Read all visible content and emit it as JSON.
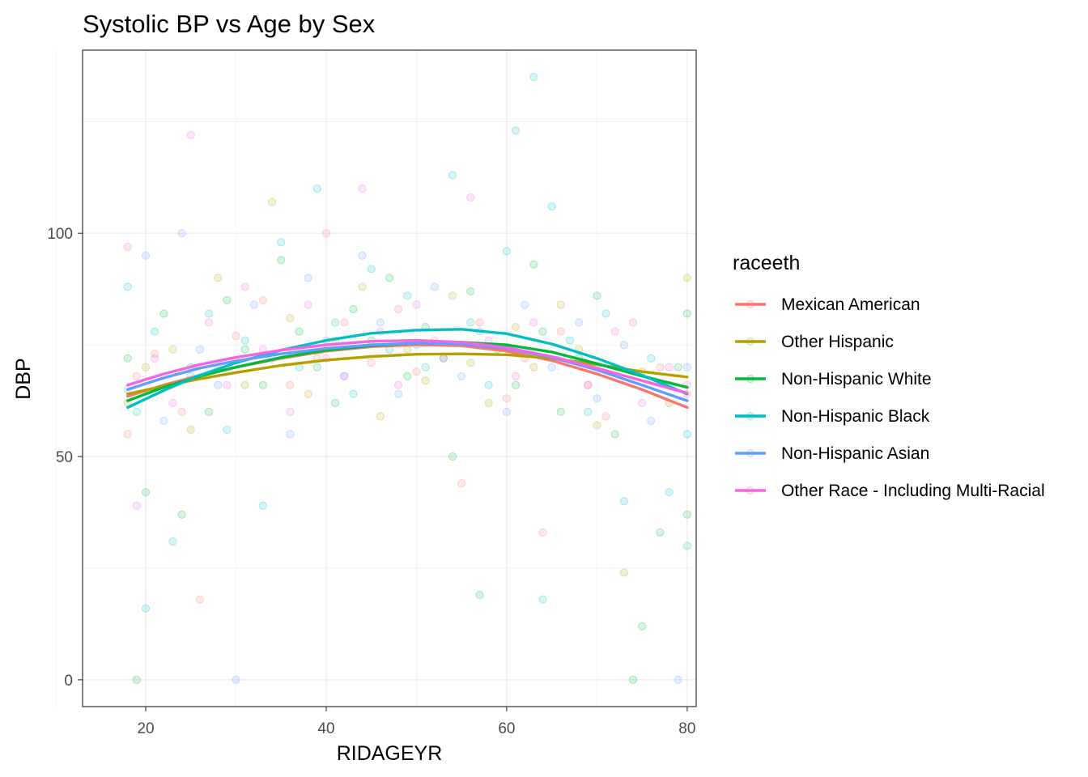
{
  "chart_data": {
    "type": "scatter",
    "title": "Systolic BP vs Age by Sex",
    "xlabel": "RIDAGEYR",
    "ylabel": "DBP",
    "xlim": [
      13,
      81
    ],
    "ylim": [
      -6,
      141
    ],
    "x_ticks": [
      "20",
      "40",
      "60",
      "80"
    ],
    "y_ticks": [
      "0",
      "50",
      "100"
    ],
    "grid": true,
    "legend": {
      "title": "raceeth",
      "position": "right"
    },
    "smooth_x": [
      18,
      22,
      26,
      30,
      35,
      40,
      45,
      50,
      55,
      60,
      65,
      70,
      75,
      80
    ],
    "series": [
      {
        "name": "Mexican American",
        "color": "#F8766D",
        "smooth_y": [
          63.5,
          66.0,
          68.2,
          70.0,
          72.0,
          73.6,
          74.6,
          75.0,
          74.8,
          73.6,
          71.5,
          68.5,
          65.0,
          61.0
        ],
        "points": [
          [
            18,
            55
          ],
          [
            19,
            68
          ],
          [
            21,
            73
          ],
          [
            24,
            60
          ],
          [
            26,
            18
          ],
          [
            28,
            70
          ],
          [
            30,
            77
          ],
          [
            33,
            85
          ],
          [
            36,
            66
          ],
          [
            39,
            72
          ],
          [
            40,
            100
          ],
          [
            42,
            80
          ],
          [
            45,
            71
          ],
          [
            48,
            83
          ],
          [
            50,
            69
          ],
          [
            52,
            76
          ],
          [
            55,
            44
          ],
          [
            57,
            80
          ],
          [
            60,
            63
          ],
          [
            62,
            72
          ],
          [
            64,
            33
          ],
          [
            66,
            78
          ],
          [
            69,
            66
          ],
          [
            71,
            59
          ],
          [
            74,
            80
          ],
          [
            77,
            70
          ],
          [
            80,
            64
          ]
        ]
      },
      {
        "name": "Other Hispanic",
        "color": "#B79F00",
        "smooth_y": [
          64.0,
          65.8,
          67.4,
          68.8,
          70.4,
          71.6,
          72.4,
          72.9,
          73.0,
          72.8,
          72.0,
          70.6,
          69.0,
          67.8
        ],
        "points": [
          [
            18,
            62
          ],
          [
            20,
            70
          ],
          [
            23,
            74
          ],
          [
            25,
            56
          ],
          [
            28,
            90
          ],
          [
            31,
            66
          ],
          [
            34,
            107
          ],
          [
            36,
            81
          ],
          [
            38,
            64
          ],
          [
            41,
            76
          ],
          [
            44,
            88
          ],
          [
            46,
            59
          ],
          [
            49,
            74
          ],
          [
            51,
            67
          ],
          [
            54,
            86
          ],
          [
            56,
            71
          ],
          [
            58,
            62
          ],
          [
            61,
            79
          ],
          [
            63,
            70
          ],
          [
            66,
            84
          ],
          [
            68,
            74
          ],
          [
            70,
            57
          ],
          [
            73,
            24
          ],
          [
            75,
            69
          ],
          [
            78,
            62
          ],
          [
            80,
            90
          ]
        ]
      },
      {
        "name": "Non-Hispanic White",
        "color": "#00BA38",
        "smooth_y": [
          62.5,
          65.5,
          68.0,
          70.0,
          72.2,
          73.8,
          74.8,
          75.4,
          75.6,
          75.0,
          73.4,
          70.8,
          68.0,
          65.5
        ],
        "points": [
          [
            18,
            72
          ],
          [
            19,
            0
          ],
          [
            20,
            42
          ],
          [
            22,
            82
          ],
          [
            24,
            37
          ],
          [
            25,
            70
          ],
          [
            27,
            60
          ],
          [
            29,
            85
          ],
          [
            31,
            74
          ],
          [
            33,
            66
          ],
          [
            35,
            94
          ],
          [
            37,
            78
          ],
          [
            39,
            70
          ],
          [
            41,
            62
          ],
          [
            43,
            83
          ],
          [
            45,
            76
          ],
          [
            47,
            90
          ],
          [
            49,
            68
          ],
          [
            51,
            79
          ],
          [
            53,
            72
          ],
          [
            54,
            50
          ],
          [
            56,
            87
          ],
          [
            57,
            19
          ],
          [
            59,
            74
          ],
          [
            61,
            66
          ],
          [
            63,
            93
          ],
          [
            64,
            78
          ],
          [
            66,
            60
          ],
          [
            68,
            72
          ],
          [
            70,
            86
          ],
          [
            72,
            55
          ],
          [
            74,
            0
          ],
          [
            75,
            12
          ],
          [
            77,
            33
          ],
          [
            79,
            70
          ],
          [
            80,
            82
          ],
          [
            80,
            37
          ]
        ]
      },
      {
        "name": "Non-Hispanic Black",
        "color": "#00BFC4",
        "smooth_y": [
          61.0,
          64.8,
          68.2,
          71.0,
          73.8,
          76.0,
          77.6,
          78.3,
          78.5,
          77.5,
          75.2,
          72.0,
          68.2,
          64.0
        ],
        "points": [
          [
            18,
            88
          ],
          [
            19,
            60
          ],
          [
            20,
            16
          ],
          [
            21,
            78
          ],
          [
            23,
            31
          ],
          [
            25,
            68
          ],
          [
            27,
            82
          ],
          [
            29,
            56
          ],
          [
            31,
            76
          ],
          [
            33,
            39
          ],
          [
            35,
            98
          ],
          [
            37,
            70
          ],
          [
            39,
            110
          ],
          [
            41,
            80
          ],
          [
            43,
            64
          ],
          [
            45,
            92
          ],
          [
            47,
            74
          ],
          [
            49,
            86
          ],
          [
            51,
            70
          ],
          [
            54,
            113
          ],
          [
            56,
            80
          ],
          [
            58,
            66
          ],
          [
            60,
            96
          ],
          [
            61,
            123
          ],
          [
            63,
            135
          ],
          [
            64,
            18
          ],
          [
            65,
            106
          ],
          [
            67,
            76
          ],
          [
            69,
            60
          ],
          [
            71,
            82
          ],
          [
            73,
            40
          ],
          [
            76,
            72
          ],
          [
            78,
            42
          ],
          [
            80,
            30
          ],
          [
            80,
            55
          ]
        ]
      },
      {
        "name": "Non-Hispanic Asian",
        "color": "#619CFF",
        "smooth_y": [
          65.0,
          67.6,
          69.8,
          71.4,
          73.0,
          74.2,
          75.0,
          75.4,
          75.2,
          74.2,
          72.2,
          69.4,
          66.0,
          62.5
        ],
        "points": [
          [
            18,
            65
          ],
          [
            20,
            95
          ],
          [
            22,
            58
          ],
          [
            24,
            100
          ],
          [
            26,
            74
          ],
          [
            28,
            66
          ],
          [
            30,
            0
          ],
          [
            32,
            84
          ],
          [
            34,
            72
          ],
          [
            36,
            55
          ],
          [
            38,
            90
          ],
          [
            40,
            76
          ],
          [
            42,
            68
          ],
          [
            44,
            95
          ],
          [
            46,
            80
          ],
          [
            48,
            64
          ],
          [
            50,
            75
          ],
          [
            52,
            88
          ],
          [
            55,
            68
          ],
          [
            57,
            78
          ],
          [
            60,
            60
          ],
          [
            62,
            84
          ],
          [
            65,
            70
          ],
          [
            68,
            80
          ],
          [
            70,
            63
          ],
          [
            73,
            75
          ],
          [
            76,
            58
          ],
          [
            78,
            66
          ],
          [
            79,
            0
          ],
          [
            80,
            70
          ]
        ]
      },
      {
        "name": "Other Race - Including Multi-Racial",
        "color": "#F564E3",
        "smooth_y": [
          66.0,
          68.5,
          70.6,
          72.2,
          73.8,
          75.0,
          75.8,
          76.0,
          75.6,
          74.4,
          72.4,
          69.8,
          67.0,
          64.2
        ],
        "points": [
          [
            18,
            97
          ],
          [
            19,
            39
          ],
          [
            21,
            72
          ],
          [
            23,
            62
          ],
          [
            25,
            122
          ],
          [
            27,
            80
          ],
          [
            29,
            66
          ],
          [
            31,
            88
          ],
          [
            33,
            74
          ],
          [
            36,
            60
          ],
          [
            38,
            84
          ],
          [
            40,
            72
          ],
          [
            42,
            68
          ],
          [
            44,
            110
          ],
          [
            46,
            78
          ],
          [
            48,
            66
          ],
          [
            50,
            84
          ],
          [
            53,
            72
          ],
          [
            56,
            108
          ],
          [
            58,
            76
          ],
          [
            61,
            68
          ],
          [
            63,
            80
          ],
          [
            66,
            72
          ],
          [
            69,
            66
          ],
          [
            72,
            78
          ],
          [
            75,
            62
          ],
          [
            78,
            70
          ],
          [
            80,
            66
          ]
        ]
      }
    ]
  }
}
